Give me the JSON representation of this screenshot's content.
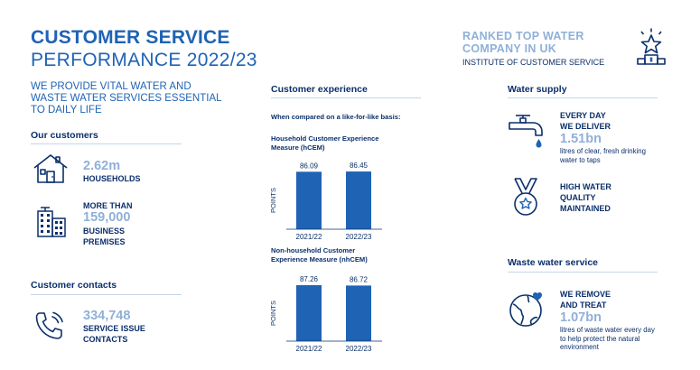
{
  "header": {
    "title_line1": "CUSTOMER SERVICE",
    "title_line2": "PERFORMANCE 2022/23",
    "intro": "WE PROVIDE VITAL WATER AND WASTE WATER SERVICES ESSENTIAL TO DAILY LIFE"
  },
  "ranking": {
    "line1": "RANKED TOP WATER",
    "line2": "COMPANY IN UK",
    "source": "INSTITUTE OF CUSTOMER SERVICE"
  },
  "customers": {
    "heading": "Our customers",
    "households_value": "2.62m",
    "households_label": "HOUSEHOLDS",
    "business_prefix": "MORE THAN",
    "business_value": "159,000",
    "business_label": "BUSINESS PREMISES"
  },
  "contacts": {
    "heading": "Customer contacts",
    "value": "334,748",
    "label": "SERVICE ISSUE CONTACTS"
  },
  "experience": {
    "heading": "Customer experience",
    "basis": "When compared on a like-for-like basis:"
  },
  "chart_data": [
    {
      "type": "bar",
      "title": "Household Customer Experience Measure (hCEM)",
      "ylabel": "POINTS",
      "categories": [
        "2021/22",
        "2022/23"
      ],
      "values": [
        86.09,
        86.45
      ],
      "value_labels": [
        "86.09",
        "86.45"
      ],
      "color": "#1f63b5",
      "ylim": [
        0,
        86.5
      ]
    },
    {
      "type": "bar",
      "title": "Non-household Customer Experience Measure (nhCEM)",
      "ylabel": "POINTS",
      "categories": [
        "2021/22",
        "2022/23"
      ],
      "values": [
        87.26,
        86.72
      ],
      "value_labels": [
        "87.26",
        "86.72"
      ],
      "color": "#1f63b5",
      "ylim": [
        0,
        87.3
      ]
    }
  ],
  "water_supply": {
    "heading": "Water supply",
    "deliver_line1": "EVERY DAY",
    "deliver_line2": "WE DELIVER",
    "deliver_value": "1.51bn",
    "deliver_detail": "litres of clear, fresh drinking water to taps",
    "quality_line1": "HIGH WATER",
    "quality_line2": "QUALITY",
    "quality_line3": "MAINTAINED"
  },
  "waste_water": {
    "heading": "Waste water service",
    "line1": "WE REMOVE",
    "line2": "AND TREAT",
    "value": "1.07bn",
    "detail": "litres of waste water every day to help protect the natural environment"
  },
  "icons": [
    "trophy-star-icon",
    "house-icon",
    "office-building-icon",
    "phone-icon",
    "tap-icon",
    "medal-icon",
    "globe-heart-icon"
  ],
  "colors": {
    "navy": "#0b2f6b",
    "blue": "#1f63b5",
    "light_blue": "#8fb0d8",
    "rule": "#c5d6ea"
  }
}
